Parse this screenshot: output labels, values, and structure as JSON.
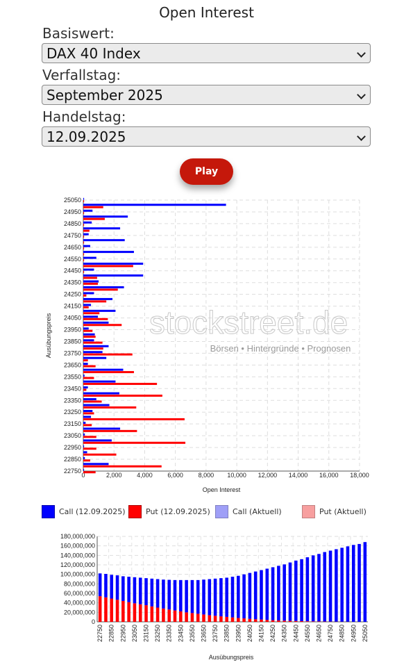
{
  "page": {
    "title": "Open Interest",
    "play_label": "Play",
    "fields": [
      {
        "label": "Basiswert:",
        "value": "DAX 40 Index"
      },
      {
        "label": "Verfallstag:",
        "value": "September 2025"
      },
      {
        "label": "Handelstag:",
        "value": "12.09.2025"
      }
    ]
  },
  "watermark": {
    "main": "stockstreet.de",
    "tagline": "Börsen • Hintergründe • Prognosen"
  },
  "legend": [
    {
      "label": "Call (12.09.2025)",
      "color": "#0000ff",
      "border": "#0000aa"
    },
    {
      "label": "Put (12.09.2025)",
      "color": "#ff0000",
      "border": "#aa0000"
    },
    {
      "label": "Call (Aktuell)",
      "color": "#9f9ff7",
      "border": "#8080c0"
    },
    {
      "label": "Put (Aktuell)",
      "color": "#f79f9f",
      "border": "#c08080"
    }
  ],
  "chart_data": [
    {
      "type": "bar",
      "orientation": "horizontal",
      "xlabel": "Open Interest",
      "ylabel": "Ausübungspreis",
      "xlim": [
        0,
        18000
      ],
      "x_ticks": [
        "0",
        "2,000",
        "4,000",
        "6,000",
        "8,000",
        "10,000",
        "12,000",
        "14,000",
        "16,000",
        "18,000"
      ],
      "y_tick_labels": [
        "25050",
        "24950",
        "24850",
        "24750",
        "24650",
        "24550",
        "24450",
        "24350",
        "24250",
        "24150",
        "24050",
        "23950",
        "23850",
        "23750",
        "23650",
        "23550",
        "23450",
        "23350",
        "23250",
        "23150",
        "23050",
        "22950",
        "22850",
        "22750"
      ],
      "grid": true,
      "categories": [
        25050,
        25000,
        24950,
        24900,
        24850,
        24800,
        24750,
        24700,
        24650,
        24600,
        24550,
        24500,
        24450,
        24400,
        24350,
        24300,
        24250,
        24200,
        24150,
        24100,
        24050,
        24000,
        23950,
        23900,
        23850,
        23800,
        23750,
        23700,
        23650,
        23600,
        23550,
        23500,
        23450,
        23400,
        23350,
        23300,
        23250,
        23200,
        23150,
        23100,
        23050,
        23000,
        22950,
        22900,
        22850,
        22800,
        22750
      ],
      "series": [
        {
          "name": "Call (12.09.2025)",
          "color": "#0000ff",
          "values": [
            50,
            9300,
            600,
            2900,
            550,
            2400,
            350,
            2700,
            450,
            3300,
            850,
            3900,
            700,
            3900,
            1000,
            2650,
            700,
            1900,
            500,
            2100,
            950,
            1650,
            350,
            750,
            700,
            1650,
            1250,
            1500,
            300,
            2600,
            80,
            2100,
            300,
            2350,
            850,
            1700,
            600,
            500,
            150,
            2400,
            100,
            1850,
            50,
            250,
            100,
            1650,
            50
          ]
        },
        {
          "name": "Put (12.09.2025)",
          "color": "#ff0000",
          "values": [
            50,
            1300,
            50,
            1400,
            50,
            400,
            50,
            50,
            50,
            50,
            50,
            3250,
            50,
            900,
            950,
            2250,
            200,
            1500,
            350,
            1050,
            1600,
            2500,
            600,
            800,
            1250,
            1300,
            3200,
            300,
            800,
            3300,
            700,
            4800,
            200,
            5150,
            1200,
            3450,
            700,
            6600,
            550,
            3500,
            850,
            6650,
            850,
            2150,
            450,
            5100,
            800
          ]
        }
      ]
    },
    {
      "type": "bar",
      "stacked": true,
      "xlabel": "Ausübungspreis",
      "ylabel": "",
      "ylim": [
        0,
        180000000
      ],
      "y_ticks": [
        "0",
        "20,000,000",
        "40,000,000",
        "60,000,000",
        "80,000,000",
        "100,000,000",
        "120,000,000",
        "140,000,000",
        "160,000,000",
        "180,000,000"
      ],
      "x_tick_labels": [
        "22750",
        "22850",
        "22950",
        "23050",
        "23150",
        "23250",
        "23350",
        "23450",
        "23550",
        "23650",
        "23750",
        "23850",
        "23950",
        "24050",
        "24150",
        "24250",
        "24350",
        "24450",
        "24550",
        "24650",
        "24750",
        "24850",
        "24950",
        "25050"
      ],
      "grid": true,
      "categories": [
        22750,
        22800,
        22850,
        22900,
        22950,
        23000,
        23050,
        23100,
        23150,
        23200,
        23250,
        23300,
        23350,
        23400,
        23450,
        23500,
        23550,
        23600,
        23650,
        23700,
        23750,
        23800,
        23850,
        23900,
        23950,
        24000,
        24050,
        24100,
        24150,
        24200,
        24250,
        24300,
        24350,
        24400,
        24450,
        24500,
        24550,
        24600,
        24650,
        24700,
        24750,
        24800,
        24850,
        24900,
        24950,
        25000,
        25050
      ],
      "series": [
        {
          "name": "Put",
          "color": "#ff0000",
          "values": [
            54000000,
            51500000,
            49000000,
            46500000,
            44000000,
            41500000,
            39000000,
            37000000,
            35000000,
            32500000,
            30000000,
            28000000,
            26000000,
            24000000,
            22000000,
            20000000,
            18500000,
            17000000,
            15500000,
            14000000,
            12800000,
            11600000,
            10400000,
            9300000,
            8200000,
            7200000,
            6300000,
            5500000,
            4800000,
            4100000,
            3500000,
            3000000,
            2500000,
            2100000,
            1800000,
            1500000,
            1200000,
            1000000,
            800000,
            650000,
            500000,
            400000,
            300000,
            200000,
            150000,
            100000,
            50000
          ]
        },
        {
          "name": "Call",
          "color": "#0000ff",
          "values": [
            48000000,
            49500000,
            50000000,
            51500000,
            52000000,
            53500000,
            55000000,
            56000000,
            57000000,
            58500000,
            60000000,
            61000000,
            62500000,
            64000000,
            66000000,
            68000000,
            69500000,
            71000000,
            73500000,
            76000000,
            78200000,
            80400000,
            82600000,
            85700000,
            88800000,
            92800000,
            96700000,
            100500000,
            104200000,
            107900000,
            111500000,
            115000000,
            118500000,
            122900000,
            127200000,
            130500000,
            134800000,
            139000000,
            142200000,
            146350000,
            149500000,
            152600000,
            155700000,
            158800000,
            161850000,
            163900000,
            167950000
          ]
        }
      ]
    }
  ]
}
